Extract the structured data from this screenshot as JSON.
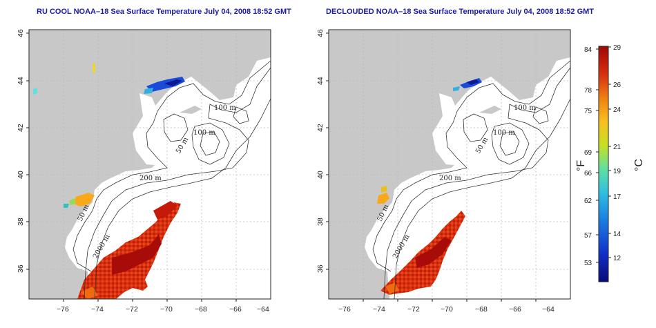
{
  "titles": {
    "left": "RU COOL NOAA–18 Sea Surface Temperature July 04, 2008 18:52 GMT",
    "right": "DECLOUDED NOAA–18 Sea Surface Temperature July 04, 2008 18:52 GMT"
  },
  "axes": {
    "lon_ticks": [
      "−76",
      "−74",
      "−72",
      "−70",
      "−68",
      "−66",
      "−64"
    ],
    "lat_ticks": [
      "36",
      "38",
      "40",
      "42",
      "44",
      "46"
    ],
    "lon_range": [
      -77,
      -63
    ],
    "lat_range": [
      35,
      46
    ]
  },
  "contour_labels": {
    "left": [
      "100 m",
      "100 m",
      "50 m",
      "200 m",
      "50 m",
      "2000 m"
    ],
    "right": [
      "100 m",
      "100 m",
      "50 m",
      "200 m",
      "50 m",
      "2000 m"
    ]
  },
  "colorbar": {
    "fahrenheit_ticks": [
      "84",
      "78",
      "75",
      "69",
      "66",
      "62",
      "57",
      "53"
    ],
    "celsius_ticks": [
      "29",
      "26",
      "24",
      "21",
      "19",
      "17",
      "14",
      "12"
    ],
    "fahrenheit_unit": "°F",
    "celsius_unit": "°C",
    "range_c": [
      10,
      29
    ],
    "colors": [
      "#0a0a78",
      "#1030c8",
      "#1a78e0",
      "#30c0e0",
      "#60e0a0",
      "#c8e020",
      "#f8c020",
      "#f08010",
      "#d83010",
      "#a00808"
    ]
  },
  "colors": {
    "land": "#c8c8c8",
    "ocean": "#ffffff",
    "grid": "#bbbbbb",
    "title": "#1a1aa8"
  }
}
